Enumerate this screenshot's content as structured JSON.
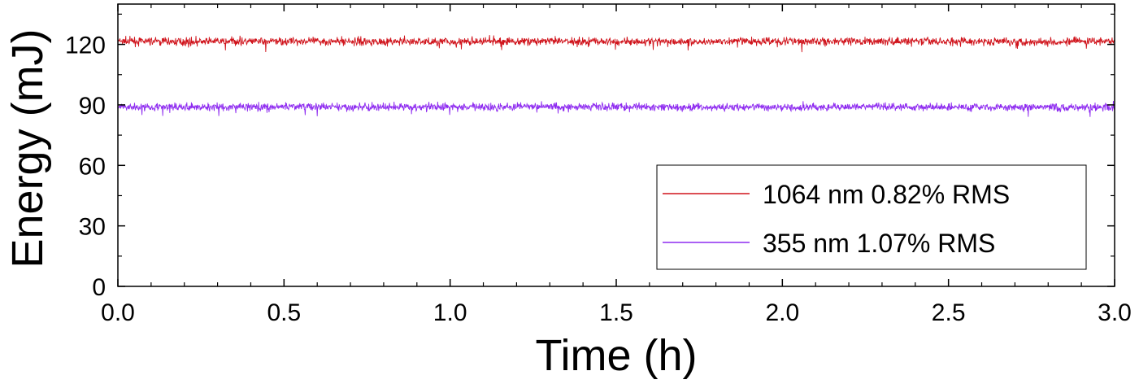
{
  "chart_data": {
    "type": "line",
    "title": "",
    "xlabel": "Time (h)",
    "ylabel": "Energy (mJ)",
    "xlim": [
      0,
      3
    ],
    "ylim": [
      0,
      140
    ],
    "xticks": [
      "0.0",
      "0.5",
      "1.0",
      "1.5",
      "2.0",
      "2.5",
      "3.0"
    ],
    "xtick_values": [
      0,
      0.5,
      1.0,
      1.5,
      2.0,
      2.5,
      3.0
    ],
    "yticks": [
      "0",
      "30",
      "60",
      "90",
      "120"
    ],
    "ytick_values": [
      0,
      30,
      60,
      90,
      120
    ],
    "grid": false,
    "legend_position": "lower-right",
    "series": [
      {
        "name": "1064 nm 0.82% RMS",
        "color": "#d0141c",
        "mean": 121.5,
        "rms_percent": 0.82,
        "x": [
          0,
          0.25,
          0.5,
          0.75,
          1.0,
          1.25,
          1.5,
          1.75,
          2.0,
          2.25,
          2.5,
          2.75,
          3.0
        ],
        "values": [
          121.5,
          121.4,
          121.6,
          121.5,
          121.3,
          121.6,
          121.5,
          121.4,
          121.6,
          121.5,
          121.5,
          121.4,
          121.5
        ]
      },
      {
        "name": "355 nm 1.07% RMS",
        "color": "#8e2bf0",
        "mean": 89.0,
        "rms_percent": 1.07,
        "x": [
          0,
          0.25,
          0.5,
          0.75,
          1.0,
          1.25,
          1.5,
          1.75,
          2.0,
          2.25,
          2.5,
          2.75,
          3.0
        ],
        "values": [
          89.2,
          88.9,
          89.1,
          88.8,
          89.0,
          89.2,
          89.1,
          88.7,
          89.0,
          89.1,
          88.9,
          88.8,
          89.0
        ]
      }
    ]
  }
}
